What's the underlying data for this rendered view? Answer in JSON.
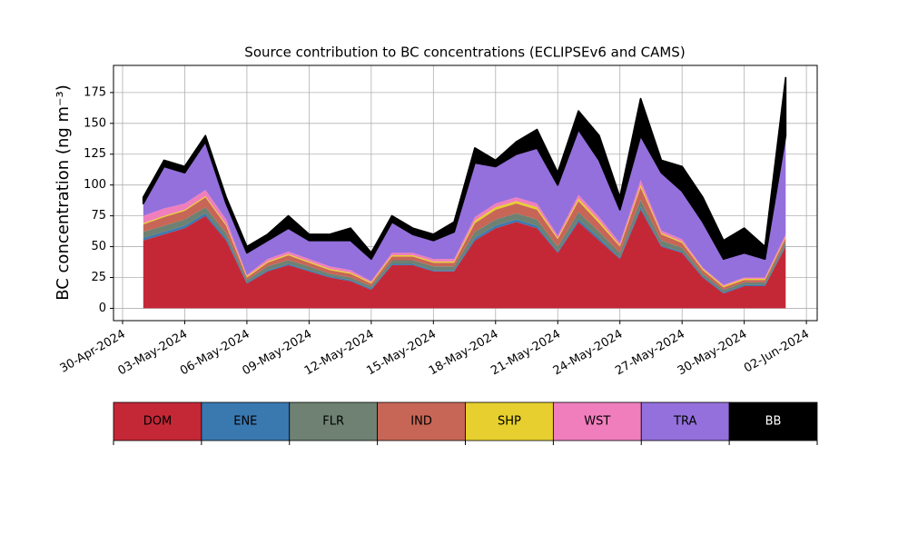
{
  "chart_data": {
    "type": "stacked_area",
    "title": "Source contribution to BC concentrations (ECLIPSEv6 and CAMS)",
    "y_label": "BC concentration (ng m⁻³)",
    "x": [
      "2024-05-01",
      "2024-05-02",
      "2024-05-03",
      "2024-05-04",
      "2024-05-05",
      "2024-05-06",
      "2024-05-07",
      "2024-05-08",
      "2024-05-09",
      "2024-05-10",
      "2024-05-11",
      "2024-05-12",
      "2024-05-13",
      "2024-05-14",
      "2024-05-15",
      "2024-05-16",
      "2024-05-17",
      "2024-05-18",
      "2024-05-19",
      "2024-05-20",
      "2024-05-21",
      "2024-05-22",
      "2024-05-23",
      "2024-05-24",
      "2024-05-25",
      "2024-05-26",
      "2024-05-27",
      "2024-05-28",
      "2024-05-29",
      "2024-05-30",
      "2024-05-31",
      "2024-06-01"
    ],
    "series": [
      {
        "name": "DOM",
        "color": "#c42837",
        "values": [
          55,
          60,
          65,
          75,
          55,
          20,
          30,
          35,
          30,
          25,
          22,
          15,
          35,
          35,
          30,
          30,
          55,
          65,
          70,
          65,
          45,
          70,
          55,
          40,
          80,
          50,
          45,
          25,
          12,
          18,
          18,
          50
        ]
      },
      {
        "name": "ENE",
        "color": "#3a78b0",
        "values": [
          2,
          2,
          2,
          2,
          2,
          1,
          1,
          1,
          1,
          1,
          1,
          1,
          1,
          1,
          1,
          1,
          2,
          2,
          2,
          2,
          1,
          2,
          2,
          1,
          2,
          1,
          1,
          1,
          1,
          1,
          1,
          1
        ]
      },
      {
        "name": "FLR",
        "color": "#6e8172",
        "values": [
          5,
          5,
          5,
          5,
          4,
          2,
          3,
          3,
          3,
          2,
          2,
          2,
          3,
          3,
          3,
          3,
          5,
          5,
          5,
          5,
          4,
          6,
          5,
          4,
          6,
          4,
          3,
          2,
          2,
          2,
          2,
          3
        ]
      },
      {
        "name": "IND",
        "color": "#c76656",
        "values": [
          6,
          7,
          7,
          8,
          6,
          2,
          3,
          4,
          3,
          3,
          3,
          2,
          3,
          3,
          3,
          3,
          7,
          8,
          8,
          8,
          6,
          9,
          7,
          5,
          10,
          5,
          4,
          3,
          2,
          2,
          2,
          3
        ]
      },
      {
        "name": "SHP",
        "color": "#e6cf2e",
        "values": [
          1,
          1,
          1,
          1,
          1,
          1,
          1,
          1,
          1,
          1,
          1,
          1,
          1,
          1,
          1,
          1,
          2,
          2,
          2,
          2,
          1,
          2,
          2,
          1,
          2,
          1,
          1,
          1,
          1,
          1,
          1,
          1
        ]
      },
      {
        "name": "WST",
        "color": "#f07ebd",
        "values": [
          6,
          6,
          5,
          5,
          4,
          1,
          2,
          2,
          2,
          2,
          2,
          1,
          2,
          2,
          2,
          2,
          3,
          3,
          3,
          3,
          2,
          3,
          3,
          2,
          4,
          2,
          2,
          1,
          1,
          1,
          1,
          2
        ]
      },
      {
        "name": "TRA",
        "color": "#9370db",
        "values": [
          10,
          34,
          25,
          39,
          13,
          18,
          15,
          19,
          15,
          21,
          24,
          18,
          25,
          15,
          15,
          22,
          44,
          30,
          35,
          45,
          41,
          53,
          46,
          27,
          36,
          47,
          39,
          37,
          21,
          20,
          15,
          80
        ]
      },
      {
        "name": "BB",
        "color": "#000000",
        "values": [
          5,
          5,
          5,
          5,
          5,
          5,
          5,
          10,
          5,
          5,
          10,
          5,
          5,
          5,
          5,
          8,
          12,
          5,
          10,
          15,
          10,
          15,
          20,
          10,
          30,
          10,
          20,
          20,
          15,
          20,
          10,
          47
        ]
      }
    ],
    "xlim": [
      "2024-04-29T13:30:00Z",
      "2024-06-02T12:30:00Z"
    ],
    "xticks": [
      {
        "value": "2024-04-30",
        "label": "30-Apr-2024"
      },
      {
        "value": "2024-05-03",
        "label": "03-May-2024"
      },
      {
        "value": "2024-05-06",
        "label": "06-May-2024"
      },
      {
        "value": "2024-05-09",
        "label": "09-May-2024"
      },
      {
        "value": "2024-05-12",
        "label": "12-May-2024"
      },
      {
        "value": "2024-05-15",
        "label": "15-May-2024"
      },
      {
        "value": "2024-05-18",
        "label": "18-May-2024"
      },
      {
        "value": "2024-05-21",
        "label": "21-May-2024"
      },
      {
        "value": "2024-05-24",
        "label": "24-May-2024"
      },
      {
        "value": "2024-05-27",
        "label": "27-May-2024"
      },
      {
        "value": "2024-05-30",
        "label": "30-May-2024"
      },
      {
        "value": "2024-06-02",
        "label": "02-Jun-2024"
      }
    ],
    "ylim": [
      -10,
      197
    ],
    "yticks": [
      0,
      25,
      50,
      75,
      100,
      125,
      150,
      175
    ],
    "grid": true,
    "legend": "below"
  }
}
